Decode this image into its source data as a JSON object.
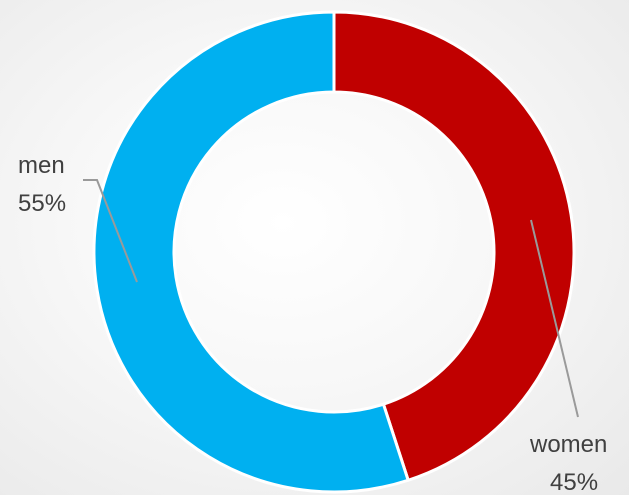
{
  "chart_data": {
    "type": "pie",
    "variant": "donut",
    "categories": [
      "women",
      "men"
    ],
    "values": [
      45,
      55
    ],
    "value_labels": [
      "45%",
      "55%"
    ],
    "colors": [
      "#C00000",
      "#00B0F0"
    ],
    "title": "",
    "legend": "none",
    "start_angle_deg": 0,
    "direction": "clockwise"
  }
}
